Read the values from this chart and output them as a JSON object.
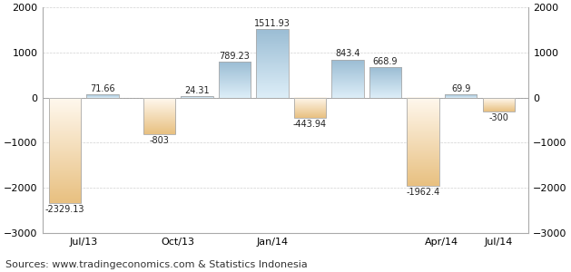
{
  "bars": [
    {
      "x": 0,
      "val": -2329.13,
      "type": "orange"
    },
    {
      "x": 1,
      "val": 71.66,
      "type": "blue"
    },
    {
      "x": 2.5,
      "val": -803,
      "type": "orange"
    },
    {
      "x": 3.5,
      "val": 24.31,
      "type": "blue"
    },
    {
      "x": 4.5,
      "val": 789.23,
      "type": "blue"
    },
    {
      "x": 5.5,
      "val": 1511.93,
      "type": "blue"
    },
    {
      "x": 6.5,
      "val": -443.94,
      "type": "orange"
    },
    {
      "x": 7.5,
      "val": 843.4,
      "type": "blue"
    },
    {
      "x": 8.5,
      "val": 668.9,
      "type": "blue"
    },
    {
      "x": 9.5,
      "val": -1962.4,
      "type": "orange"
    },
    {
      "x": 10.5,
      "val": 69.9,
      "type": "blue"
    },
    {
      "x": 11.5,
      "val": -300,
      "type": "orange"
    }
  ],
  "xtick_positions": [
    0.5,
    3.0,
    6.0,
    10.0,
    11.5
  ],
  "xtick_labels": [
    "Jul/13",
    "Oct/13",
    "Jan/14",
    "Apr/14",
    "Jul/14"
  ],
  "ylim": [
    -3000,
    2000
  ],
  "yticks": [
    -3000,
    -2000,
    -1000,
    0,
    1000,
    2000
  ],
  "xlim": [
    -0.6,
    12.3
  ],
  "source_text": "Sources: www.tradingeconomics.com & Statistics Indonesia",
  "bg_color": "#ffffff",
  "plot_bg_color": "#ffffff",
  "grid_color": "#d0d0d0",
  "orange_color_top": "#e8c080",
  "orange_color_bottom": "#fff8ee",
  "blue_color_top": "#9bbdd4",
  "blue_color_bottom": "#ddeef8",
  "bar_width": 0.85,
  "font_size_label": 7,
  "font_size_source": 8,
  "font_size_tick": 8
}
